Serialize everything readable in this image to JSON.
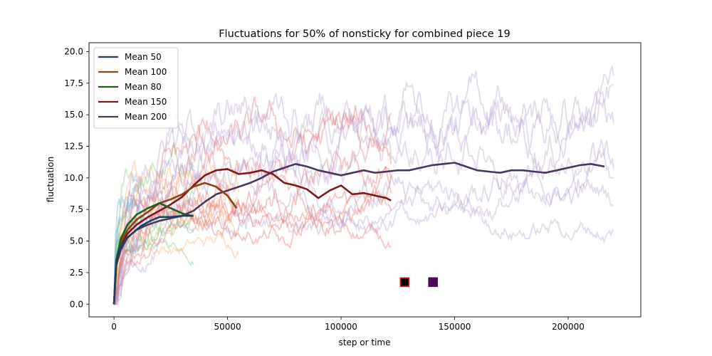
{
  "chart_data": {
    "type": "line",
    "title": "Fluctuations for 50% of nonsticky for combined piece 19",
    "xlabel": "step or time",
    "ylabel": "fluctuation",
    "xlim": [
      -11000,
      232000
    ],
    "ylim": [
      -1.0,
      20.7
    ],
    "xticks": [
      0,
      50000,
      100000,
      150000,
      200000
    ],
    "xtick_labels": [
      "0",
      "50000",
      "100000",
      "150000",
      "200000"
    ],
    "yticks": [
      0.0,
      2.5,
      5.0,
      7.5,
      10.0,
      12.5,
      15.0,
      17.5,
      20.0
    ],
    "ytick_labels": [
      "0.0",
      "2.5",
      "5.0",
      "7.5",
      "10.0",
      "12.5",
      "15.0",
      "17.5",
      "20.0"
    ],
    "grid": false,
    "legend_position": "top-left",
    "series": [
      {
        "name": "Mean 50",
        "color": "#1f3f5f",
        "x": [
          0,
          1000,
          2500,
          5000,
          8000,
          12000,
          16000,
          20000,
          25000,
          30000,
          35000
        ],
        "y": [
          0,
          3.3,
          4.4,
          5.1,
          5.6,
          6.2,
          6.6,
          6.9,
          6.9,
          7.0,
          7.0
        ]
      },
      {
        "name": "Mean 100",
        "color": "#8b4513",
        "x": [
          0,
          1000,
          3000,
          6000,
          10000,
          15000,
          20000,
          25000,
          30000,
          35000,
          40000,
          45000,
          50000,
          54000
        ],
        "y": [
          0,
          3.4,
          4.9,
          5.9,
          6.7,
          7.3,
          8.0,
          8.3,
          8.7,
          9.3,
          9.6,
          9.3,
          8.6,
          7.6
        ]
      },
      {
        "name": "Mean 80",
        "color": "#245d1e",
        "x": [
          0,
          1000,
          3000,
          6000,
          10000,
          15000,
          20000,
          25000,
          30000,
          34000
        ],
        "y": [
          0,
          3.5,
          5.2,
          6.3,
          7.1,
          7.6,
          8.0,
          7.6,
          7.2,
          7.0
        ]
      },
      {
        "name": "Mean 150",
        "color": "#7a1a1a",
        "x": [
          0,
          1000,
          3000,
          6000,
          10000,
          15000,
          20000,
          25000,
          30000,
          35000,
          40000,
          45000,
          50000,
          55000,
          60000,
          65000,
          70000,
          75000,
          80000,
          85000,
          90000,
          95000,
          100000,
          105000,
          110000,
          115000,
          120000,
          122000
        ],
        "y": [
          0,
          3.1,
          4.7,
          5.6,
          6.3,
          6.9,
          7.4,
          7.9,
          8.5,
          9.4,
          10.2,
          10.6,
          10.7,
          10.3,
          10.4,
          10.6,
          10.3,
          9.6,
          9.4,
          9.1,
          8.4,
          9.0,
          9.4,
          8.7,
          8.8,
          8.6,
          8.4,
          8.2
        ]
      },
      {
        "name": "Mean 200",
        "color": "#4a3760",
        "x": [
          0,
          1000,
          3000,
          6000,
          10000,
          15000,
          20000,
          25000,
          30000,
          35000,
          40000,
          45000,
          50000,
          55000,
          60000,
          65000,
          70000,
          75000,
          80000,
          85000,
          90000,
          95000,
          100000,
          105000,
          110000,
          115000,
          120000,
          125000,
          130000,
          135000,
          140000,
          145000,
          150000,
          155000,
          160000,
          165000,
          170000,
          175000,
          180000,
          185000,
          190000,
          195000,
          200000,
          205000,
          210000,
          216000
        ],
        "y": [
          0,
          3.1,
          4.3,
          5.3,
          5.9,
          6.3,
          6.6,
          6.8,
          7.0,
          7.4,
          8.1,
          8.7,
          9.0,
          9.3,
          9.6,
          10.0,
          10.5,
          10.8,
          11.1,
          10.9,
          10.6,
          10.4,
          10.2,
          10.4,
          10.6,
          10.4,
          10.5,
          10.6,
          10.6,
          10.8,
          11.0,
          11.1,
          11.2,
          10.9,
          10.6,
          10.5,
          10.4,
          10.6,
          10.6,
          10.5,
          10.4,
          10.6,
          10.8,
          11.0,
          11.1,
          10.9
        ]
      }
    ],
    "markers": [
      {
        "x": 128000,
        "y": 1.75,
        "color": "#000000",
        "edgecolor": "#d62728"
      },
      {
        "x": 140500,
        "y": 1.75,
        "color": "#4b0a55",
        "edgecolor": "#4b0a55"
      }
    ],
    "background_traces": [
      {
        "group": "Mean 50",
        "color": "#6baed6",
        "x_end": 12000,
        "count": 5,
        "level": 6.2
      },
      {
        "group": "Mean 80",
        "color": "#74c476",
        "x_end": 35000,
        "count": 6,
        "level": 7.0
      },
      {
        "group": "Mean 100",
        "color": "#fdae6b",
        "x_end": 55000,
        "count": 6,
        "level": 7.8
      },
      {
        "group": "Mean 150",
        "color": "#e66a6a",
        "x_end": 122000,
        "count": 7,
        "level": 8.6
      },
      {
        "group": "Mean 200",
        "color": "#b59fd0",
        "x_end": 220000,
        "count": 7,
        "level": 10.5
      }
    ]
  }
}
